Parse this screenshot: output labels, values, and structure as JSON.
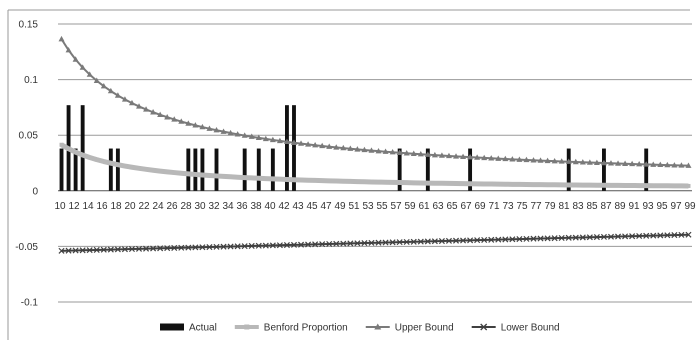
{
  "chart_data": {
    "type": "bar",
    "title": "",
    "xlabel": "",
    "ylabel": "",
    "ylim": [
      -0.1,
      0.15
    ],
    "yticks": [
      -0.1,
      -0.05,
      0,
      0.05,
      0.1,
      0.15
    ],
    "ytick_labels": [
      "-0.1",
      "-0.05",
      "0",
      "0.05",
      "0.1",
      "0.15"
    ],
    "x_start": 10,
    "x_end": 99,
    "x_tick_labels": [
      10,
      12,
      14,
      16,
      18,
      20,
      22,
      24,
      26,
      28,
      30,
      32,
      34,
      36,
      38,
      40,
      42,
      43,
      45,
      47,
      49,
      51,
      53,
      55,
      57,
      59,
      61,
      63,
      65,
      67,
      69,
      71,
      73,
      75,
      77,
      79,
      81,
      83,
      85,
      87,
      89,
      91,
      93,
      95,
      97,
      99
    ],
    "grid": "horizontal",
    "legend_position": "bottom",
    "series": [
      {
        "name": "Actual",
        "kind": "bar",
        "color": "#111111",
        "points": [
          [
            10,
            0.038
          ],
          [
            11,
            0.077
          ],
          [
            12,
            0.038
          ],
          [
            13,
            0.077
          ],
          [
            17,
            0.038
          ],
          [
            18,
            0.038
          ],
          [
            28,
            0.038
          ],
          [
            29,
            0.038
          ],
          [
            30,
            0.038
          ],
          [
            32,
            0.038
          ],
          [
            36,
            0.038
          ],
          [
            38,
            0.038
          ],
          [
            40,
            0.038
          ],
          [
            42,
            0.077
          ],
          [
            43,
            0.077
          ],
          [
            58,
            0.038
          ],
          [
            62,
            0.038
          ],
          [
            68,
            0.038
          ],
          [
            82,
            0.038
          ],
          [
            87,
            0.038
          ],
          [
            93,
            0.038
          ]
        ]
      },
      {
        "name": "Benford Proportion",
        "kind": "line",
        "color": "#b8b8b8",
        "marker": "square",
        "formula": "benford"
      },
      {
        "name": "Upper Bound",
        "kind": "line",
        "color": "#7a7a7a",
        "marker": "triangle",
        "formula": "upper"
      },
      {
        "name": "Lower Bound",
        "kind": "line",
        "color": "#404040",
        "marker": "x",
        "formula": "lower"
      }
    ]
  }
}
